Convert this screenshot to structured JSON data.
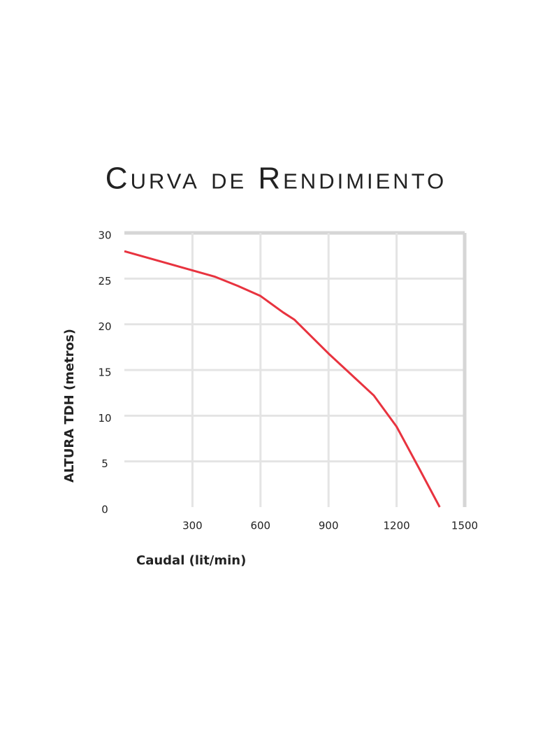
{
  "chart_data": {
    "type": "line",
    "title": "Curva de Rendimiento",
    "x_label": "Caudal (lit/min)",
    "y_label": "ALTURA TDH (metros)",
    "x": [
      0,
      300,
      400,
      500,
      600,
      700,
      750,
      900,
      1000,
      1100,
      1200,
      1300,
      1390
    ],
    "series": [
      {
        "color": "#e8333f",
        "values": [
          28,
          25.9,
          25.2,
          24.2,
          23.1,
          21.3,
          20.5,
          16.8,
          14.5,
          12.2,
          8.8,
          4.2,
          0
        ]
      }
    ],
    "xlim": [
      0,
      1500
    ],
    "xticks": [
      300,
      600,
      900,
      1200,
      1500
    ],
    "ylim": [
      0,
      30
    ],
    "yticks": [
      0,
      5,
      10,
      15,
      20,
      25,
      30
    ],
    "grid": true
  }
}
